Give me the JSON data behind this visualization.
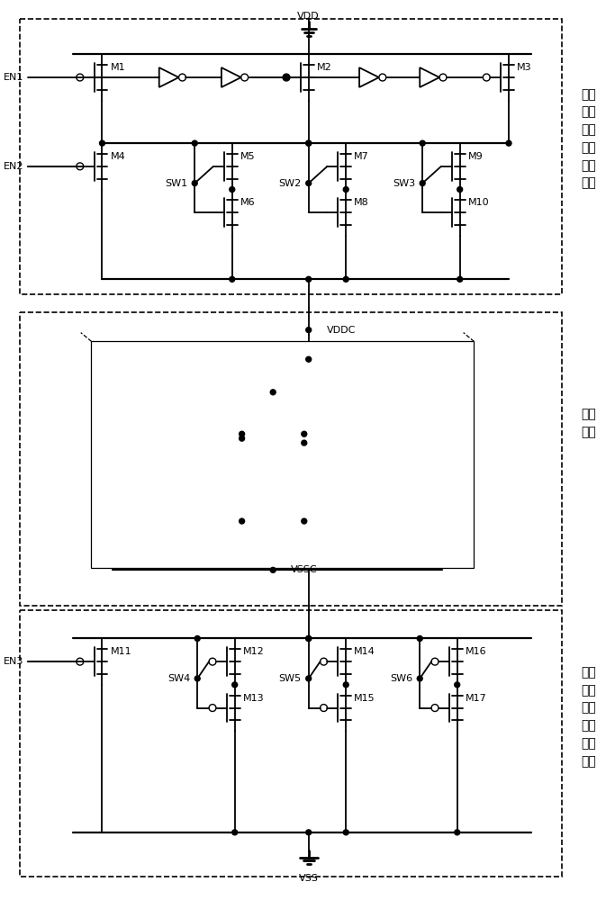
{
  "bg_color": "#ffffff",
  "line_color": "#000000",
  "fig_width": 6.83,
  "fig_height": 10.0,
  "block1_label": "存储\n阵列\n电源\n电压\n控制\n模块",
  "block2_label": "存储\n阵列",
  "block3_label": "存储\n阵列\n地端\n电压\n控制\n模块",
  "lw": 1.3
}
